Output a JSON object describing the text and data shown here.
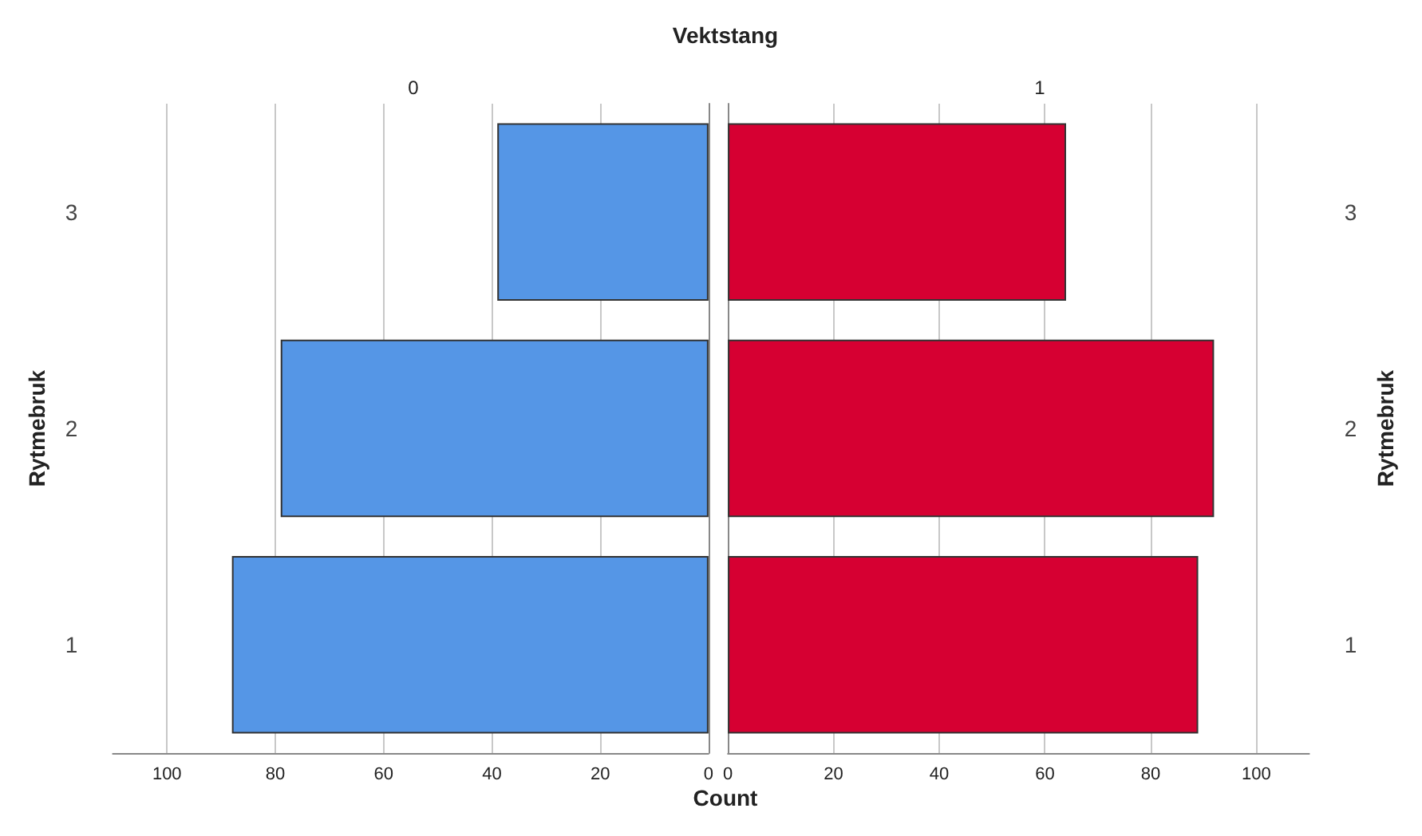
{
  "chart_data": [
    {
      "type": "bar",
      "orientation": "horizontal",
      "title": "0",
      "ylabel": "Rytmebruk",
      "xlabel": "Count",
      "annotations": [
        "Vektstang"
      ],
      "categories": [
        "3",
        "2",
        "1"
      ],
      "series": [
        {
          "color": "#5596e6",
          "values": [
            39,
            79,
            88
          ]
        }
      ],
      "xlim": [
        110,
        0
      ],
      "xticks": [
        0,
        20,
        40,
        60,
        80,
        100
      ],
      "grid": "x"
    },
    {
      "type": "bar",
      "orientation": "horizontal",
      "title": "1",
      "ylabel": "Rytmebruk",
      "categories": [
        "3",
        "2",
        "1"
      ],
      "series": [
        {
          "color": "#d60032",
          "values": [
            64,
            92,
            89
          ]
        }
      ],
      "xlim": [
        0,
        110
      ],
      "xticks": [
        0,
        20,
        40,
        60,
        80,
        100
      ],
      "grid": "x"
    }
  ]
}
